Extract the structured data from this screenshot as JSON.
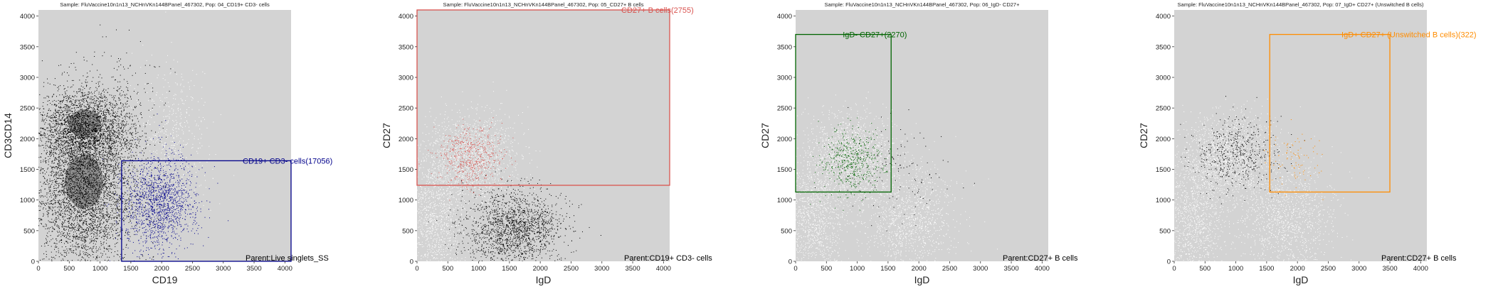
{
  "chart_data": [
    {
      "type": "scatter",
      "title": "Sample: FluVaccine10n1n13_NCHnVKn144BPanel_467302, Pop: 04_CD19+ CD3- cells",
      "xlabel": "CD19",
      "ylabel": "CD3CD14",
      "xlim": [
        0,
        4100
      ],
      "ylim": [
        0,
        4100
      ],
      "xticks": [
        0,
        500,
        1000,
        1500,
        2000,
        2500,
        3000,
        3500,
        4000
      ],
      "yticks": [
        0,
        500,
        1000,
        1500,
        2000,
        2500,
        3000,
        3500,
        4000
      ],
      "grid": false,
      "background": "#d3d3d3",
      "gate": {
        "label": "CD19+ CD3- cells(17056)",
        "x": [
          1350,
          4100
        ],
        "y": [
          0,
          1640
        ],
        "color": "#00008b"
      },
      "parent_label": "Parent:Live singlets_SS",
      "clusters": [
        {
          "color": "#000000",
          "cx": 750,
          "cy": 2150,
          "sx": 380,
          "sy": 330,
          "n": 2600
        },
        {
          "color": "#000000",
          "cx": 750,
          "cy": 1150,
          "sx": 420,
          "sy": 650,
          "n": 4200
        },
        {
          "color": "#00008b",
          "cx": 1950,
          "cy": 950,
          "sx": 300,
          "sy": 380,
          "n": 1500
        },
        {
          "color": "#ffffff",
          "cx": 2150,
          "cy": 2000,
          "sx": 300,
          "sy": 600,
          "n": 500
        },
        {
          "color": "#000000",
          "cx": 1200,
          "cy": 2700,
          "sx": 500,
          "sy": 500,
          "n": 150
        }
      ],
      "dense_blobs": [
        {
          "cx": 750,
          "cy": 2250,
          "rx": 260,
          "ry": 230,
          "color": "#555555"
        },
        {
          "cx": 740,
          "cy": 1300,
          "rx": 310,
          "ry": 430,
          "color": "#555555"
        }
      ]
    },
    {
      "type": "scatter",
      "title": "Sample: FluVaccine10n1n13_NCHnVKn144BPanel_467302, Pop: 05_CD27+ B cells",
      "xlabel": "IgD",
      "ylabel": "CD27",
      "xlim": [
        0,
        4100
      ],
      "ylim": [
        0,
        4100
      ],
      "xticks": [
        0,
        500,
        1000,
        1500,
        2000,
        2500,
        3000,
        3500,
        4000
      ],
      "yticks": [
        0,
        500,
        1000,
        1500,
        2000,
        2500,
        3000,
        3500,
        4000
      ],
      "grid": false,
      "background": "#d3d3d3",
      "gate": {
        "label": "CD27+ B cells(2755)",
        "x": [
          0,
          4100
        ],
        "y": [
          1240,
          4100
        ],
        "color": "#d9534f"
      },
      "parent_label": "Parent:CD19+ CD3- cells",
      "clusters": [
        {
          "color": "#ffffff",
          "cx": 900,
          "cy": 1700,
          "sx": 350,
          "sy": 350,
          "n": 1400
        },
        {
          "color": "#ffffff",
          "cx": 300,
          "cy": 700,
          "sx": 250,
          "sy": 600,
          "n": 1200
        },
        {
          "color": "#000000",
          "cx": 1650,
          "cy": 550,
          "sx": 350,
          "sy": 300,
          "n": 1500
        },
        {
          "color": "#d9534f",
          "cx": 850,
          "cy": 1700,
          "sx": 250,
          "sy": 250,
          "n": 500
        },
        {
          "color": "#000000",
          "cx": 1100,
          "cy": 500,
          "sx": 300,
          "sy": 350,
          "n": 300
        }
      ],
      "dense_blobs": []
    },
    {
      "type": "scatter",
      "title": "Sample: FluVaccine10n1n13_NCHnVKn144BPanel_467302, Pop: 06_IgD- CD27+",
      "xlabel": "IgD",
      "ylabel": "CD27",
      "xlim": [
        0,
        4100
      ],
      "ylim": [
        0,
        4100
      ],
      "xticks": [
        0,
        500,
        1000,
        1500,
        2000,
        2500,
        3000,
        3500,
        4000
      ],
      "yticks": [
        0,
        500,
        1000,
        1500,
        2000,
        2500,
        3000,
        3500,
        4000
      ],
      "grid": false,
      "background": "#d3d3d3",
      "gate": {
        "label": "IgD- CD27+(2270)",
        "x": [
          0,
          1550
        ],
        "y": [
          1130,
          3700
        ],
        "color": "#006400"
      },
      "parent_label": "Parent:CD27+ B cells",
      "clusters": [
        {
          "color": "#ffffff",
          "cx": 900,
          "cy": 1700,
          "sx": 350,
          "sy": 350,
          "n": 1400
        },
        {
          "color": "#ffffff",
          "cx": 300,
          "cy": 700,
          "sx": 250,
          "sy": 600,
          "n": 1200
        },
        {
          "color": "#ffffff",
          "cx": 1800,
          "cy": 700,
          "sx": 400,
          "sy": 450,
          "n": 1200
        },
        {
          "color": "#006400",
          "cx": 900,
          "cy": 1650,
          "sx": 260,
          "sy": 260,
          "n": 500
        },
        {
          "color": "#000000",
          "cx": 1600,
          "cy": 1500,
          "sx": 450,
          "sy": 400,
          "n": 120
        }
      ],
      "dense_blobs": []
    },
    {
      "type": "scatter",
      "title": "Sample: FluVaccine10n1n13_NCHnVKn144BPanel_467302, Pop: 07_IgD+ CD27+ (Unswitched B cells)",
      "xlabel": "IgD",
      "ylabel": "CD27",
      "xlim": [
        0,
        4100
      ],
      "ylim": [
        0,
        4100
      ],
      "xticks": [
        0,
        500,
        1000,
        1500,
        2000,
        2500,
        3000,
        3500,
        4000
      ],
      "yticks": [
        0,
        500,
        1000,
        1500,
        2000,
        2500,
        3000,
        3500,
        4000
      ],
      "grid": false,
      "background": "#d3d3d3",
      "gate": {
        "label": "IgD+ CD27+ (Unswitched B cells)(322)",
        "x": [
          1550,
          3500
        ],
        "y": [
          1130,
          3700
        ],
        "color": "#ff8c00"
      },
      "parent_label": "Parent:CD27+ B cells",
      "clusters": [
        {
          "color": "#ffffff",
          "cx": 900,
          "cy": 1700,
          "sx": 350,
          "sy": 350,
          "n": 1400
        },
        {
          "color": "#ffffff",
          "cx": 300,
          "cy": 700,
          "sx": 250,
          "sy": 600,
          "n": 1200
        },
        {
          "color": "#ffffff",
          "cx": 1800,
          "cy": 700,
          "sx": 400,
          "sy": 450,
          "n": 1200
        },
        {
          "color": "#000000",
          "cx": 1000,
          "cy": 1750,
          "sx": 330,
          "sy": 300,
          "n": 500
        },
        {
          "color": "#ff8c00",
          "cx": 1900,
          "cy": 1650,
          "sx": 220,
          "sy": 250,
          "n": 90
        }
      ],
      "dense_blobs": []
    }
  ]
}
